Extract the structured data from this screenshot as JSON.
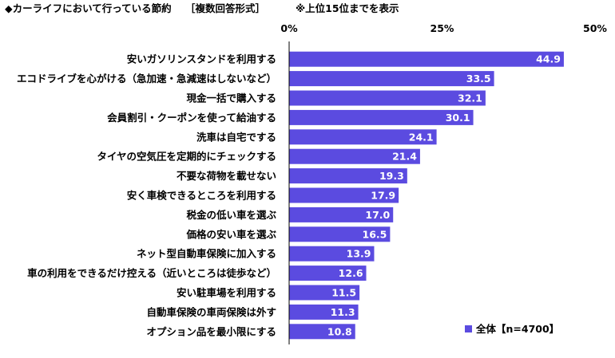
{
  "header": {
    "title": "◆カーライフにおいて行っている節約",
    "format": "［複数回答形式］",
    "note": "※上位15位までを表示"
  },
  "chart_data": {
    "type": "bar",
    "orientation": "horizontal",
    "categories": [
      "安いガソリンスタンドを利用する",
      "エコドライブを心がける（急加速・急減速はしないなど）",
      "現金一括で購入する",
      "会員割引・クーポンを使って給油する",
      "洗車は自宅でする",
      "タイヤの空気圧を定期的にチェックする",
      "不要な荷物を載せない",
      "安く車検できるところを利用する",
      "税金の低い車を選ぶ",
      "価格の安い車を選ぶ",
      "ネット型自動車保険に加入する",
      "車の利用をできるだけ控える（近いところは徒歩など）",
      "安い駐車場を利用する",
      "自動車保険の車両保険は外す",
      "オプション品を最小限にする"
    ],
    "series": [
      {
        "name": "全体【n=4700】",
        "values": [
          44.9,
          33.5,
          32.1,
          30.1,
          24.1,
          21.4,
          19.3,
          17.9,
          17.0,
          16.5,
          13.9,
          12.6,
          11.5,
          11.3,
          10.8
        ],
        "value_labels": [
          "44.9",
          "33.5",
          "32.1",
          "30.1",
          "24.1",
          "21.4",
          "19.3",
          "17.9",
          "17.0",
          "16.5",
          "13.9",
          "12.6",
          "11.5",
          "11.3",
          "10.8"
        ]
      }
    ],
    "xlim": [
      0,
      50
    ],
    "ticks": [
      "0%",
      "25%",
      "50%"
    ],
    "tick_values": [
      0,
      25,
      50
    ],
    "grid": false,
    "legend_position": "bottom-right",
    "colors": {
      "bar": "#5B4BE0",
      "value_text": "#FFFFFF"
    }
  }
}
